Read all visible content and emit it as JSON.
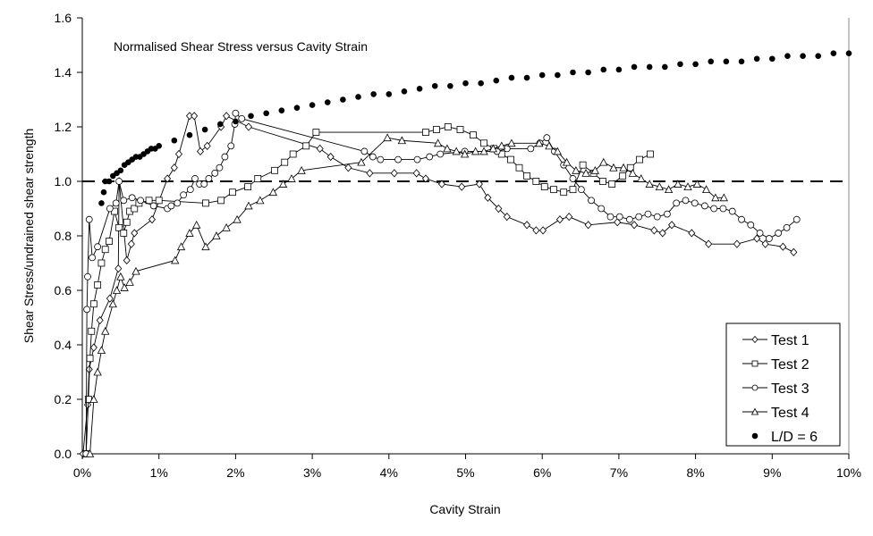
{
  "chart_data": {
    "type": "scatter",
    "title": "Normalised Shear Stress versus Cavity Strain",
    "xlabel": "Cavity Strain",
    "ylabel": "Shear Stress/undrained shear strength",
    "xlim": [
      0,
      10
    ],
    "ylim": [
      0,
      1.6
    ],
    "x_unit": "%",
    "x_ticks": [
      "0%",
      "1%",
      "2%",
      "3%",
      "4%",
      "5%",
      "6%",
      "7%",
      "8%",
      "9%",
      "10%"
    ],
    "y_ticks": [
      "0.0",
      "0.2",
      "0.4",
      "0.6",
      "0.8",
      "1.0",
      "1.2",
      "1.4",
      "1.6"
    ],
    "grid": false,
    "legend_position": "bottom-right",
    "reference_line": {
      "y": 1.0,
      "style": "dashed"
    },
    "series": [
      {
        "name": "Test 1",
        "marker": "diamond",
        "line": true,
        "x": [
          0.01,
          0.07,
          0.09,
          0.15,
          0.23,
          0.36,
          0.47,
          0.48,
          0.58,
          0.64,
          0.68,
          0.91,
          1.11,
          1.2,
          1.26,
          1.4,
          1.46,
          1.54,
          1.63,
          1.81,
          1.88,
          2.17,
          3.1,
          3.24,
          3.47,
          3.75,
          4.07,
          4.36,
          4.48,
          4.69,
          4.95,
          5.18,
          5.29,
          5.43,
          5.54,
          5.8,
          5.92,
          6.01,
          6.23,
          6.35,
          6.6,
          6.98,
          7.2,
          7.46,
          7.57,
          7.69,
          7.95,
          8.17,
          8.54,
          8.8,
          8.91,
          9.14,
          9.28
        ],
        "y": [
          0,
          0.18,
          0.31,
          0.39,
          0.49,
          0.57,
          0.68,
          1.0,
          0.71,
          0.77,
          0.81,
          0.86,
          1.01,
          1.05,
          1.1,
          1.24,
          1.24,
          1.11,
          1.13,
          1.2,
          1.24,
          1.2,
          1.12,
          1.09,
          1.05,
          1.03,
          1.03,
          1.03,
          1.01,
          0.99,
          0.98,
          0.99,
          0.94,
          0.9,
          0.87,
          0.84,
          0.82,
          0.82,
          0.86,
          0.87,
          0.84,
          0.85,
          0.84,
          0.82,
          0.81,
          0.84,
          0.81,
          0.77,
          0.77,
          0.79,
          0.77,
          0.76,
          0.74
        ]
      },
      {
        "name": "Test 2",
        "marker": "square",
        "line": true,
        "x": [
          0.05,
          0.08,
          0.1,
          0.12,
          0.15,
          0.2,
          0.25,
          0.3,
          0.35,
          0.42,
          0.48,
          0.54,
          0.58,
          0.62,
          0.68,
          0.74,
          0.87,
          1.0,
          1.61,
          1.81,
          1.96,
          2.16,
          2.29,
          2.51,
          2.64,
          2.75,
          2.92,
          3.05,
          4.48,
          4.62,
          4.77,
          4.93,
          5.1,
          5.24,
          5.37,
          5.47,
          5.59,
          5.7,
          5.8,
          5.92,
          6.03,
          6.15,
          6.28,
          6.4,
          6.53,
          6.67,
          6.79,
          6.91,
          7.05,
          7.15,
          7.27,
          7.41
        ],
        "y": [
          0,
          0.2,
          0.35,
          0.45,
          0.55,
          0.62,
          0.7,
          0.75,
          0.78,
          0.89,
          0.83,
          0.81,
          0.85,
          0.89,
          0.9,
          0.92,
          0.93,
          0.93,
          0.92,
          0.93,
          0.96,
          0.98,
          1.01,
          1.04,
          1.07,
          1.1,
          1.13,
          1.18,
          1.18,
          1.19,
          1.2,
          1.19,
          1.17,
          1.14,
          1.12,
          1.1,
          1.08,
          1.05,
          1.02,
          1.0,
          0.98,
          0.97,
          0.96,
          0.97,
          1.06,
          1.03,
          1.0,
          0.99,
          1.02,
          1.05,
          1.08,
          1.1
        ]
      },
      {
        "name": "Test 3",
        "marker": "circle",
        "line": true,
        "x": [
          0.05,
          0.06,
          0.07,
          0.09,
          0.13,
          0.2,
          0.36,
          0.44,
          0.48,
          0.54,
          0.65,
          0.76,
          0.93,
          1.11,
          1.16,
          1.24,
          1.32,
          1.41,
          1.47,
          1.53,
          1.59,
          1.65,
          1.73,
          1.79,
          1.86,
          1.94,
          1.99,
          2.0,
          2.08,
          3.68,
          3.79,
          3.89,
          4.12,
          4.37,
          4.53,
          4.67,
          4.99,
          5.41,
          5.54,
          5.85,
          5.97,
          6.06,
          6.16,
          6.28,
          6.4,
          6.51,
          6.64,
          6.77,
          6.89,
          7.01,
          7.14,
          7.26,
          7.38,
          7.5,
          7.63,
          7.75,
          7.87,
          7.99,
          8.12,
          8.24,
          8.36,
          8.48,
          8.6,
          8.72,
          8.84,
          8.96,
          9.08,
          9.19,
          9.32
        ],
        "y": [
          0,
          0.53,
          0.65,
          0.86,
          0.72,
          0.76,
          0.9,
          0.92,
          1.0,
          0.93,
          0.94,
          0.93,
          0.91,
          0.9,
          0.91,
          0.92,
          0.95,
          0.97,
          1.01,
          0.99,
          0.99,
          1.01,
          1.03,
          1.05,
          1.09,
          1.13,
          1.21,
          1.25,
          1.23,
          1.11,
          1.09,
          1.08,
          1.08,
          1.08,
          1.09,
          1.1,
          1.11,
          1.11,
          1.12,
          1.12,
          1.14,
          1.16,
          1.11,
          1.06,
          1.01,
          0.97,
          0.93,
          0.9,
          0.87,
          0.87,
          0.86,
          0.87,
          0.88,
          0.87,
          0.88,
          0.92,
          0.93,
          0.92,
          0.91,
          0.9,
          0.9,
          0.89,
          0.86,
          0.84,
          0.81,
          0.79,
          0.81,
          0.83,
          0.86
        ]
      },
      {
        "name": "Test 4",
        "marker": "triangle",
        "line": true,
        "x": [
          0.1,
          0.15,
          0.2,
          0.25,
          0.3,
          0.4,
          0.45,
          0.5,
          0.55,
          0.62,
          0.7,
          1.21,
          1.29,
          1.4,
          1.49,
          1.61,
          1.75,
          1.88,
          2.02,
          2.17,
          2.32,
          2.49,
          2.62,
          2.73,
          2.86,
          3.64,
          3.98,
          4.17,
          4.64,
          4.76,
          4.88,
          4.99,
          5.13,
          5.24,
          5.36,
          5.47,
          5.6,
          5.96,
          6.09,
          6.2,
          6.32,
          6.44,
          6.57,
          6.69,
          6.8,
          6.93,
          7.06,
          7.18,
          7.29,
          7.4,
          7.53,
          7.65,
          7.77,
          7.9,
          8.02,
          8.14,
          8.26,
          8.37
        ],
        "y": [
          0,
          0.2,
          0.3,
          0.38,
          0.45,
          0.55,
          0.6,
          0.65,
          0.61,
          0.63,
          0.67,
          0.71,
          0.76,
          0.81,
          0.84,
          0.76,
          0.8,
          0.83,
          0.86,
          0.91,
          0.93,
          0.96,
          0.99,
          1.01,
          1.04,
          1.07,
          1.16,
          1.15,
          1.14,
          1.12,
          1.11,
          1.1,
          1.11,
          1.11,
          1.12,
          1.13,
          1.14,
          1.14,
          1.13,
          1.11,
          1.07,
          1.04,
          1.03,
          1.04,
          1.07,
          1.05,
          1.05,
          1.03,
          1.01,
          0.99,
          0.98,
          0.97,
          0.99,
          0.98,
          0.99,
          0.97,
          0.94,
          0.94
        ]
      },
      {
        "name": "L/D = 6",
        "marker": "filled-circle",
        "line": false,
        "x": [
          0.25,
          0.28,
          0.3,
          0.35,
          0.4,
          0.45,
          0.5,
          0.55,
          0.6,
          0.65,
          0.7,
          0.75,
          0.8,
          0.85,
          0.9,
          0.95,
          1.0,
          1.2,
          1.4,
          1.6,
          1.8,
          2.0,
          2.2,
          2.4,
          2.6,
          2.8,
          3.0,
          3.2,
          3.4,
          3.6,
          3.8,
          4.0,
          4.2,
          4.4,
          4.6,
          4.8,
          5.0,
          5.2,
          5.4,
          5.6,
          5.8,
          6.0,
          6.2,
          6.4,
          6.6,
          6.8,
          7.0,
          7.2,
          7.4,
          7.6,
          7.8,
          8.0,
          8.2,
          8.4,
          8.6,
          8.8,
          9.0,
          9.2,
          9.4,
          9.6,
          9.8,
          10.0
        ],
        "y": [
          0.92,
          0.96,
          1.0,
          1.0,
          1.02,
          1.03,
          1.04,
          1.06,
          1.07,
          1.08,
          1.09,
          1.09,
          1.1,
          1.11,
          1.12,
          1.12,
          1.13,
          1.15,
          1.17,
          1.19,
          1.21,
          1.22,
          1.24,
          1.25,
          1.26,
          1.27,
          1.28,
          1.29,
          1.3,
          1.31,
          1.32,
          1.32,
          1.33,
          1.34,
          1.35,
          1.35,
          1.36,
          1.36,
          1.37,
          1.38,
          1.38,
          1.39,
          1.39,
          1.4,
          1.4,
          1.41,
          1.41,
          1.42,
          1.42,
          1.42,
          1.43,
          1.43,
          1.44,
          1.44,
          1.44,
          1.45,
          1.45,
          1.46,
          1.46,
          1.46,
          1.47,
          1.47
        ]
      }
    ]
  }
}
